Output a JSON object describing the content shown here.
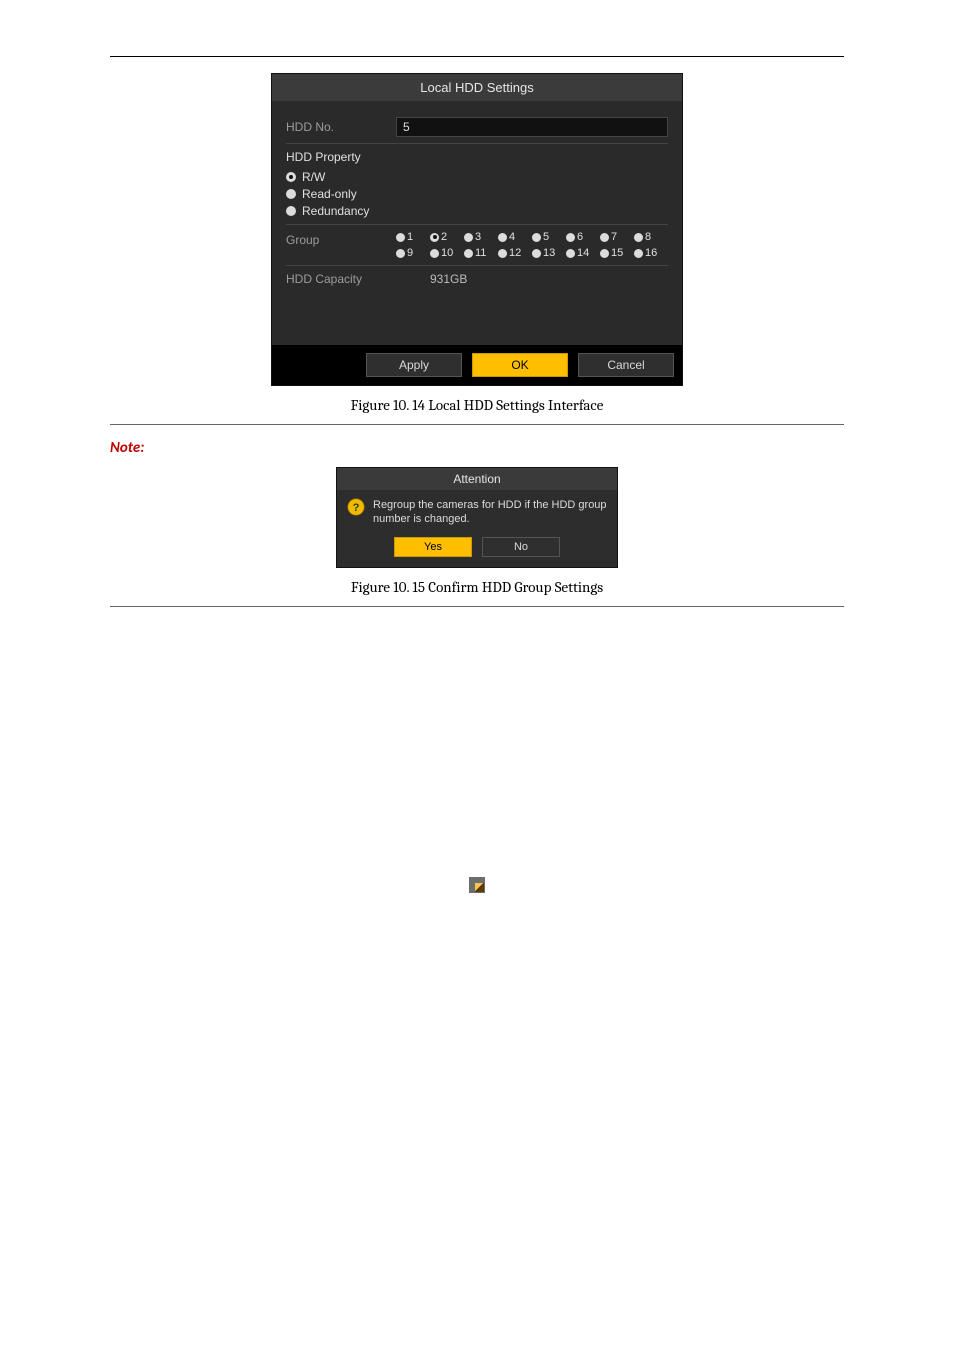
{
  "hr": true,
  "dialog": {
    "title": "Local HDD Settings",
    "hdd_no_label": "HDD No.",
    "hdd_no_value": "5",
    "property_label": "HDD Property",
    "options": {
      "rw": {
        "label": "R/W",
        "checked": true
      },
      "ro": {
        "label": "Read-only",
        "checked": false
      },
      "re": {
        "label": "Redundancy",
        "checked": false
      }
    },
    "group_label": "Group",
    "group_selected": 2,
    "group_numbers": [
      1,
      2,
      3,
      4,
      5,
      6,
      7,
      8,
      9,
      10,
      11,
      12,
      13,
      14,
      15,
      16
    ],
    "capacity_label": "HDD Capacity",
    "capacity_value": "931GB",
    "buttons": {
      "apply": "Apply",
      "ok": "OK",
      "cancel": "Cancel"
    }
  },
  "caption1": "Figure 10. 14 Local HDD Settings Interface",
  "note_label": "Note:",
  "attention": {
    "title": "Attention",
    "message": "Regroup the cameras for HDD if the HDD group number is changed.",
    "yes": "Yes",
    "no": "No"
  },
  "caption2": "Figure 10. 15 Confirm HDD Group Settings"
}
